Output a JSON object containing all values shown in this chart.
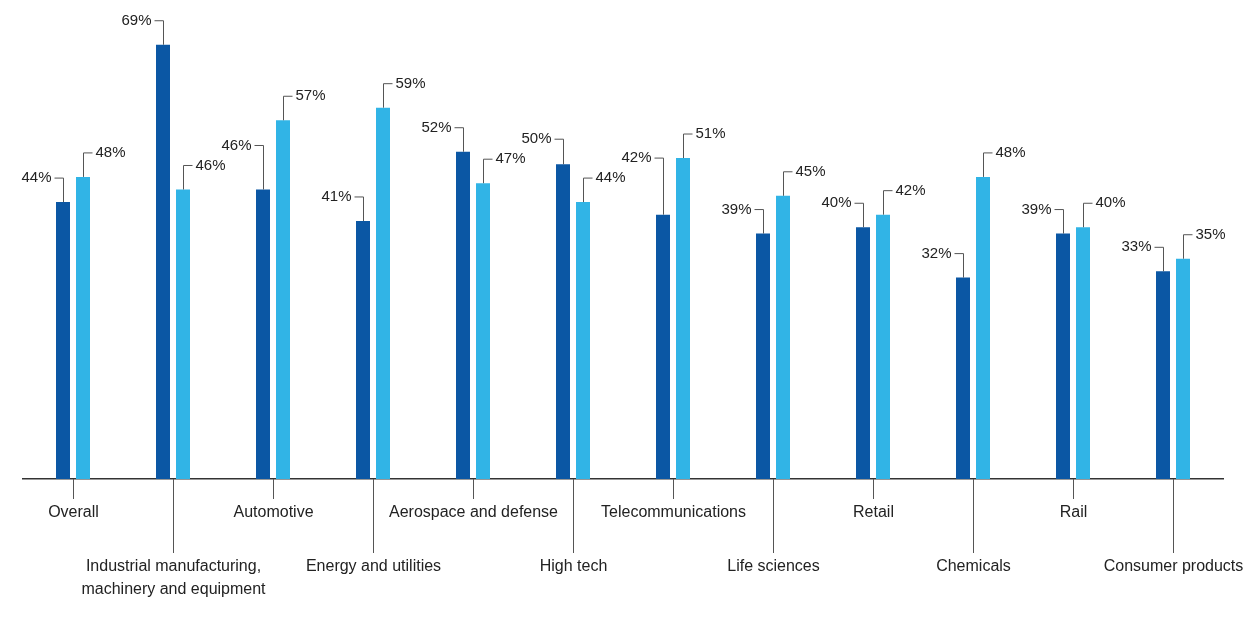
{
  "chart_data": {
    "type": "bar",
    "categories": [
      "Overall",
      "Industrial manufacturing, machinery and equipment",
      "Automotive",
      "Energy and utilities",
      "Aerospace and defense",
      "High tech",
      "Telecommunications",
      "Life sciences",
      "Retail",
      "Chemicals",
      "Rail",
      "Consumer products"
    ],
    "series": [
      {
        "color": "#0b57a4",
        "values": [
          44,
          69,
          46,
          41,
          52,
          50,
          42,
          39,
          40,
          32,
          39,
          33
        ],
        "value_labels": [
          "44%",
          "69%",
          "46%",
          "41%",
          "52%",
          "50%",
          "42%",
          "39%",
          "40%",
          "32%",
          "39%",
          "33%"
        ]
      },
      {
        "color": "#31b4e6",
        "values": [
          48,
          46,
          57,
          59,
          47,
          44,
          51,
          45,
          42,
          48,
          40,
          35
        ],
        "value_labels": [
          "48%",
          "46%",
          "57%",
          "59%",
          "47%",
          "44%",
          "51%",
          "45%",
          "42%",
          "48%",
          "40%",
          "35%"
        ]
      }
    ],
    "grid": false,
    "legend": false,
    "tick_labels": "x"
  }
}
